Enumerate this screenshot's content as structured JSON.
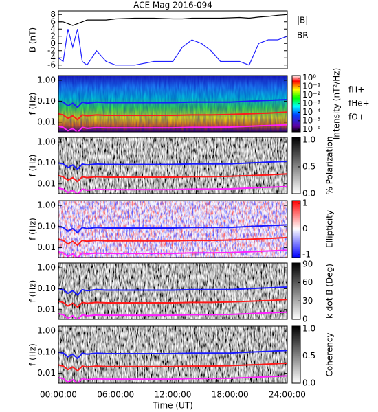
{
  "chart_data": [
    {
      "type": "line",
      "title": "ACE Mag 2016-094",
      "ylabel": "B (nT)",
      "x": [
        0,
        0.5,
        1,
        1.5,
        2,
        2.5,
        3,
        4,
        5,
        6,
        8,
        10,
        12,
        13,
        14,
        15,
        16,
        17,
        19,
        20,
        21,
        22,
        23,
        24
      ],
      "xlim": [
        0,
        24
      ],
      "ylim": [
        -7,
        9
      ],
      "yticks": [
        -6,
        -4,
        -2,
        0,
        2,
        4,
        6,
        8
      ],
      "series": [
        {
          "name": "|B|",
          "color": "#000000",
          "values": [
            6,
            6,
            5.5,
            5,
            5.5,
            6,
            6.5,
            6.5,
            6.5,
            6.8,
            7,
            7,
            6.8,
            6.8,
            7,
            7,
            7,
            7,
            7.2,
            7,
            7.3,
            7.5,
            7.8,
            8
          ]
        },
        {
          "name": "BR",
          "color": "#2020ff",
          "values": [
            -4,
            -5,
            4,
            -1,
            4,
            -5,
            -6,
            -2,
            -5,
            -6,
            -6,
            -5,
            -5,
            -1,
            1,
            0,
            -2,
            -5,
            -5,
            -6,
            0,
            1,
            1,
            2
          ]
        }
      ]
    },
    {
      "type": "spectrogram",
      "ylabel": "f (Hz)",
      "ylog": true,
      "ylim": [
        0.0034,
        1.7
      ],
      "yticks": [
        {
          "value": 0.01,
          "label": "0.01"
        },
        {
          "value": 0.1,
          "label": "0.10"
        },
        {
          "value": 1,
          "label": "1.00"
        }
      ],
      "x": [
        0,
        0.5,
        1,
        1.5,
        2,
        2.5,
        3,
        4,
        5,
        6,
        8,
        10,
        12,
        14,
        16,
        18,
        20,
        22,
        24
      ],
      "xlim": [
        0,
        24
      ],
      "series": [
        {
          "name": "fH+",
          "color": "#1a1aff",
          "values": [
            0.1,
            0.09,
            0.06,
            0.08,
            0.05,
            0.09,
            0.08,
            0.09,
            0.085,
            0.085,
            0.085,
            0.085,
            0.085,
            0.09,
            0.09,
            0.09,
            0.1,
            0.11,
            0.12
          ]
        },
        {
          "name": "fHe+",
          "color": "#ff1a1a",
          "values": [
            0.025,
            0.022,
            0.015,
            0.02,
            0.013,
            0.022,
            0.02,
            0.022,
            0.021,
            0.021,
            0.021,
            0.021,
            0.021,
            0.022,
            0.022,
            0.023,
            0.025,
            0.027,
            0.03
          ]
        },
        {
          "name": "fO+",
          "color": "#ff20ff",
          "values": [
            0.0063,
            0.0056,
            0.0038,
            0.005,
            0.0032,
            0.0056,
            0.005,
            0.0055,
            0.0053,
            0.0053,
            0.0053,
            0.0053,
            0.0053,
            0.0056,
            0.0056,
            0.0058,
            0.0063,
            0.0069,
            0.0075
          ]
        }
      ],
      "palette": "rainbow",
      "colorbar": {
        "label": "Intensity (nT²/Hz)",
        "log": true,
        "lim": [
          5e-07,
          2
        ],
        "ticks": [
          {
            "value": 1,
            "label": "10⁰"
          },
          {
            "value": 0.1,
            "label": "10⁻¹"
          },
          {
            "value": 0.01,
            "label": "10⁻²"
          },
          {
            "value": 0.001,
            "label": "10⁻³"
          },
          {
            "value": 0.0001,
            "label": "10⁻⁴"
          },
          {
            "value": 1e-05,
            "label": "10⁻⁵"
          },
          {
            "value": 1e-06,
            "label": "10⁻⁶"
          }
        ]
      }
    },
    {
      "type": "spectrogram",
      "ylabel": "f (Hz)",
      "ylog": true,
      "ylim": [
        0.0034,
        1.7
      ],
      "yticks": [
        {
          "value": 0.01,
          "label": "0.01"
        },
        {
          "value": 0.1,
          "label": "0.10"
        },
        {
          "value": 1,
          "label": "1.00"
        }
      ],
      "palette": "gray",
      "colorbar": {
        "label": "% Polarization",
        "lim": [
          0,
          1.05
        ],
        "ticks": [
          {
            "value": 0,
            "label": "0.0"
          },
          {
            "value": 0.5,
            "label": "0.5"
          },
          {
            "value": 1,
            "label": "1.0"
          }
        ]
      }
    },
    {
      "type": "spectrogram",
      "ylabel": "f (Hz)",
      "ylog": true,
      "ylim": [
        0.0034,
        1.7
      ],
      "yticks": [
        {
          "value": 0.01,
          "label": "0.01"
        },
        {
          "value": 0.1,
          "label": "0.10"
        },
        {
          "value": 1,
          "label": "1.00"
        }
      ],
      "palette": "redblue",
      "colorbar": {
        "label": "Ellipticity",
        "lim": [
          -1.1,
          1.1
        ],
        "ticks": [
          -1,
          0,
          1
        ]
      }
    },
    {
      "type": "spectrogram",
      "ylabel": "f (Hz)",
      "ylog": true,
      "ylim": [
        0.0034,
        1.7
      ],
      "yticks": [
        {
          "value": 0.01,
          "label": "0.01"
        },
        {
          "value": 0.1,
          "label": "0.10"
        },
        {
          "value": 1,
          "label": "1.00"
        }
      ],
      "palette": "gray",
      "colorbar": {
        "label": "k dot B (Deg)",
        "lim": [
          0,
          92
        ],
        "ticks": [
          0,
          30,
          60,
          90
        ]
      }
    },
    {
      "type": "spectrogram",
      "ylabel": "f (Hz)",
      "ylog": true,
      "ylim": [
        0.0034,
        1.7
      ],
      "yticks": [
        {
          "value": 0.01,
          "label": "0.01"
        },
        {
          "value": 0.1,
          "label": "0.10"
        },
        {
          "value": 1,
          "label": "1.00"
        }
      ],
      "palette": "gray",
      "colorbar": {
        "label": "Coherency",
        "lim": [
          0,
          1.05
        ],
        "ticks": [
          {
            "value": 0,
            "label": "0.0"
          },
          {
            "value": 0.5,
            "label": "0.5"
          },
          {
            "value": 1,
            "label": "1.0"
          }
        ]
      },
      "xlabel": "Time (UT)",
      "xlim": [
        0,
        24
      ],
      "xticks": [
        {
          "value": 0,
          "label": "00:00:00"
        },
        {
          "value": 6,
          "label": "06:00:00"
        },
        {
          "value": 12,
          "label": "12:00:00"
        },
        {
          "value": 18,
          "label": "18:00:00"
        },
        {
          "value": 24,
          "label": "24:00:00"
        }
      ]
    }
  ]
}
